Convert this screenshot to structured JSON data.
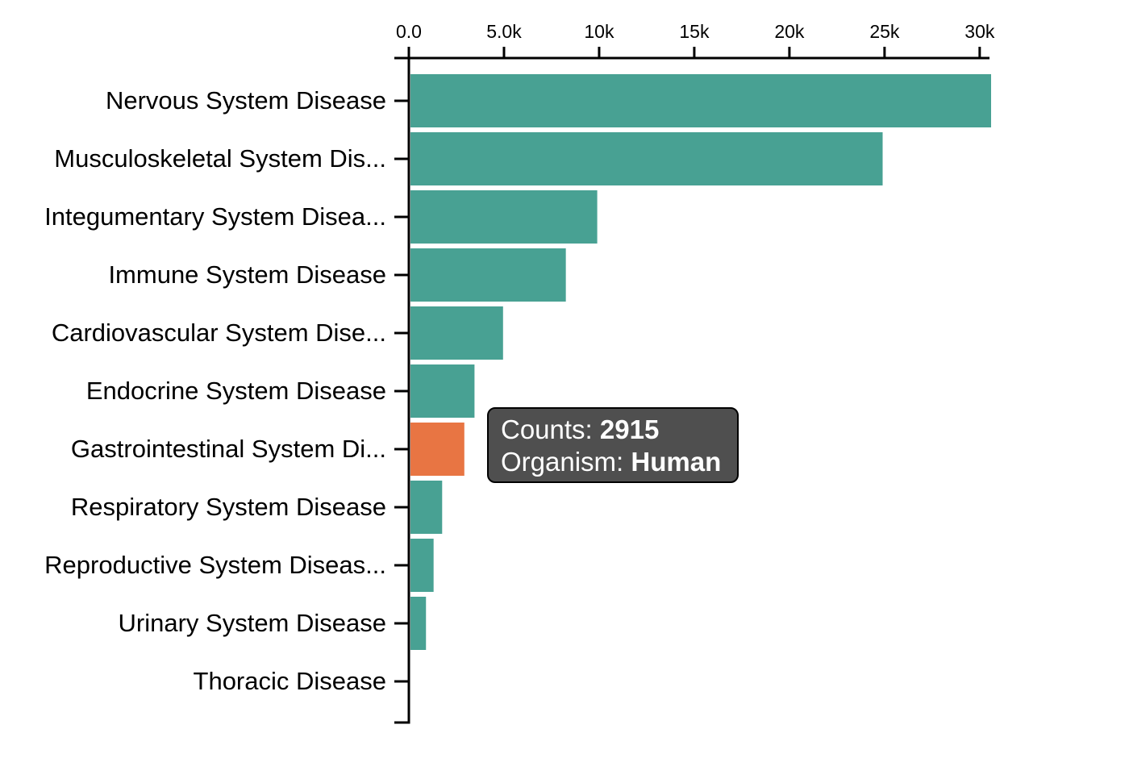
{
  "chart_data": {
    "type": "bar",
    "orientation": "horizontal",
    "categories": [
      "Nervous System Disease",
      "Musculoskeletal System Dis...",
      "Integumentary System Disea...",
      "Immune System Disease",
      "Cardiovascular System Dise...",
      "Endocrine System Disease",
      "Gastrointestinal System Di...",
      "Respiratory System Disease",
      "Reproductive System Diseas...",
      "Urinary System Disease",
      "Thoracic Disease"
    ],
    "values": [
      30600,
      24900,
      9900,
      8250,
      4950,
      3450,
      2915,
      1750,
      1300,
      900,
      0
    ],
    "highlighted_index": 6,
    "x_ticks": [
      {
        "value": 0,
        "label": "0.0"
      },
      {
        "value": 5000,
        "label": "5.0k"
      },
      {
        "value": 10000,
        "label": "10k"
      },
      {
        "value": 15000,
        "label": "15k"
      },
      {
        "value": 20000,
        "label": "20k"
      },
      {
        "value": 25000,
        "label": "25k"
      },
      {
        "value": 30000,
        "label": "30k"
      }
    ],
    "xlim": [
      0,
      30600
    ],
    "x_axis_position": "top",
    "grid": false,
    "title": "",
    "xlabel": "",
    "ylabel": "",
    "colors": {
      "bar": "#48a193",
      "highlight": "#e87543"
    }
  },
  "tooltip": {
    "counts_label": "Counts:",
    "counts_value": "2915",
    "organism_label": "Organism:",
    "organism_value": "Human"
  }
}
